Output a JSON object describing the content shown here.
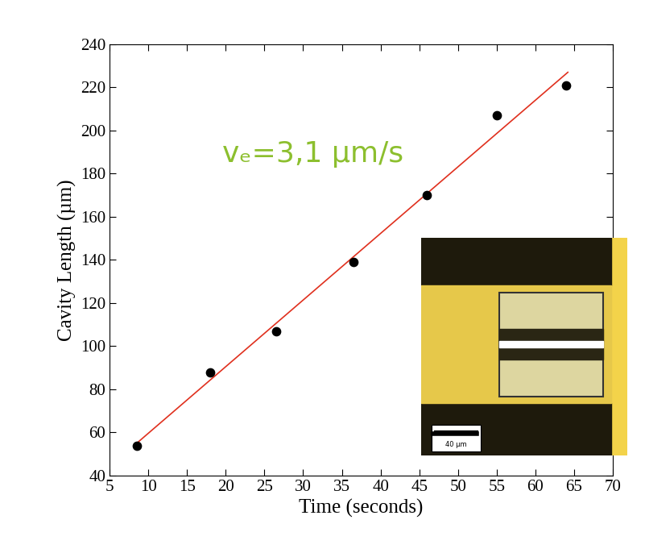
{
  "chart_data": {
    "type": "scatter",
    "x_label": "Time (seconds)",
    "y_label": "Cavity Length (µm)",
    "annotation": "vₑ=3,1 µm/s",
    "annotation_color": "#8cbf2e",
    "series": [
      {
        "type": "scatter",
        "color": "#000000",
        "marker": "o",
        "x": [
          8.5,
          18.0,
          26.5,
          36.5,
          46.0,
          55.0,
          64.0
        ],
        "values": [
          54,
          88,
          107,
          139,
          170,
          207,
          221
        ]
      },
      {
        "type": "line",
        "color": "#e0301e",
        "line_style": "solid",
        "x": [
          8.5,
          64.2
        ],
        "values": [
          55,
          227
        ]
      }
    ],
    "xlim": [
      5,
      70
    ],
    "xticks": [
      5,
      10,
      15,
      20,
      25,
      30,
      35,
      40,
      45,
      50,
      55,
      60,
      65,
      70
    ],
    "ylim": [
      40,
      240
    ],
    "yticks": [
      40,
      60,
      80,
      100,
      120,
      140,
      160,
      180,
      200,
      220,
      240
    ],
    "grid": false,
    "inset": {
      "scale_bar": "40 µm"
    }
  }
}
